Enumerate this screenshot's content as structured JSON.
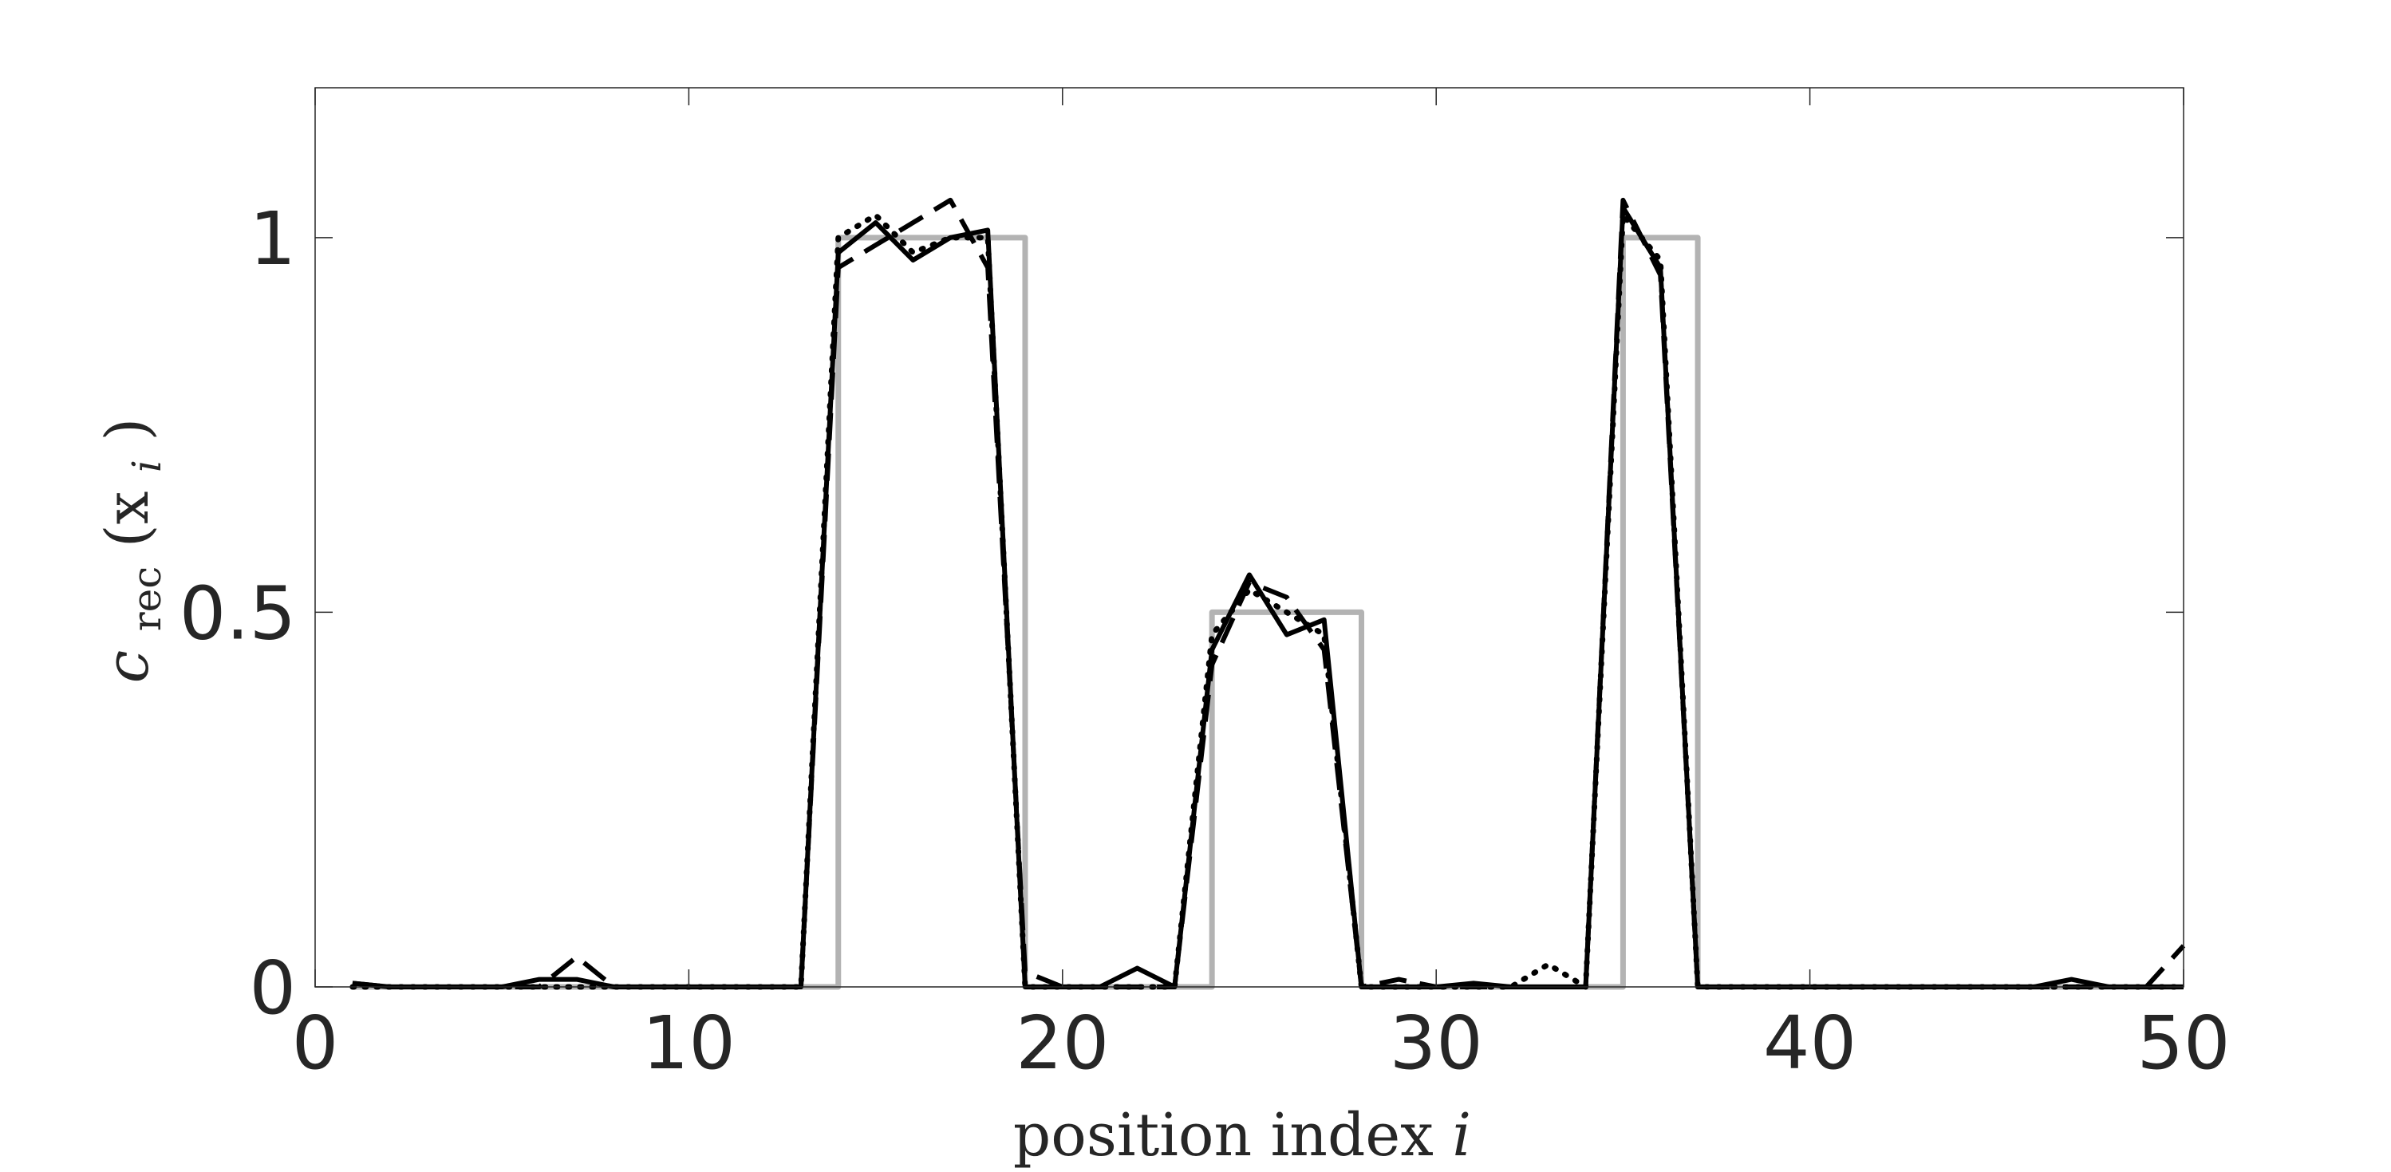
{
  "chart_data": {
    "type": "line",
    "xlabel": "position index",
    "xlabel_var": "i",
    "ylabel_main": "c",
    "ylabel_sub": "rec",
    "ylabel_arg": "(x",
    "ylabel_arg_sub": "i",
    "ylabel_close": ")",
    "xlim": [
      0,
      50
    ],
    "ylim": [
      0,
      1.2
    ],
    "xticks": [
      0,
      10,
      20,
      30,
      40,
      50
    ],
    "xtick_labels": [
      "0",
      "10",
      "20",
      "30",
      "40",
      "50"
    ],
    "yticks": [
      0,
      0.5,
      1
    ],
    "ytick_labels": [
      "0",
      "0.5",
      "1"
    ],
    "grid": false,
    "x": [
      1,
      2,
      3,
      4,
      5,
      6,
      7,
      8,
      9,
      10,
      11,
      12,
      13,
      14,
      15,
      16,
      17,
      18,
      19,
      20,
      21,
      22,
      23,
      24,
      25,
      26,
      27,
      28,
      29,
      30,
      31,
      32,
      33,
      34,
      35,
      36,
      37,
      38,
      39,
      40,
      41,
      42,
      43,
      44,
      45,
      46,
      47,
      48,
      49,
      50
    ],
    "series": [
      {
        "color": "#b3b3b3",
        "dash": "solid",
        "step": true,
        "values": [
          0,
          0,
          0,
          0,
          0,
          0,
          0,
          0,
          0,
          0,
          0,
          0,
          0,
          1,
          1,
          1,
          1,
          1,
          0,
          0,
          0,
          0,
          0,
          0.5,
          0.5,
          0.5,
          0.5,
          0,
          0,
          0,
          0,
          0,
          0,
          0,
          1,
          1,
          0,
          0,
          0,
          0,
          0,
          0,
          0,
          0,
          0,
          0,
          0,
          0,
          0,
          0
        ]
      },
      {
        "color": "#000000",
        "dash": "dotted",
        "values": [
          0,
          0,
          0,
          0,
          0,
          0,
          0,
          0,
          0,
          0,
          0,
          0,
          0,
          1.0,
          1.03,
          0.98,
          1.0,
          1.0,
          0,
          0,
          0,
          0,
          0,
          0.47,
          0.53,
          0.5,
          0.47,
          0,
          0,
          0,
          0,
          0,
          0.03,
          0,
          1.03,
          0.97,
          0,
          0,
          0,
          0,
          0,
          0,
          0,
          0,
          0,
          0,
          0,
          0,
          0,
          0
        ]
      },
      {
        "color": "#000000",
        "dash": "dashed",
        "values": [
          0.005,
          0,
          0,
          0,
          0,
          0,
          0.04,
          0,
          0,
          0,
          0,
          0,
          0,
          0.96,
          0.99,
          1.02,
          1.05,
          0.96,
          0.02,
          0,
          0,
          0,
          0,
          0.43,
          0.54,
          0.52,
          0.45,
          0,
          0.01,
          0,
          0,
          0,
          0,
          0,
          1.05,
          0.95,
          0,
          0,
          0,
          0,
          0,
          0,
          0,
          0,
          0,
          0,
          0,
          0,
          0,
          0.055
        ]
      },
      {
        "color": "#000000",
        "dash": "solid",
        "values": [
          0.005,
          0,
          0,
          0,
          0,
          0.01,
          0.01,
          0,
          0,
          0,
          0,
          0,
          0,
          0.98,
          1.02,
          0.97,
          1.0,
          1.01,
          0,
          0,
          0,
          0.025,
          0,
          0.45,
          0.55,
          0.47,
          0.49,
          0,
          0,
          0,
          0.005,
          0,
          0,
          0,
          1.04,
          0.96,
          0,
          0,
          0,
          0,
          0,
          0,
          0,
          0,
          0,
          0,
          0.01,
          0,
          0,
          0
        ]
      }
    ]
  }
}
